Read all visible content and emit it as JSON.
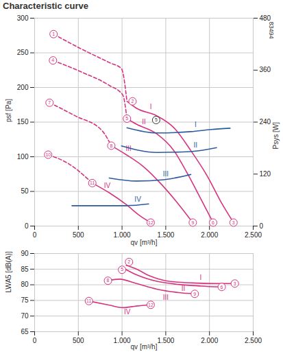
{
  "chart_data": [
    {
      "type": "line",
      "title": "Characteristic curve",
      "x_label": "qv [m³/h]",
      "y_label": "psf [Pa]",
      "y2_label": "Psys [W]",
      "code_label": "83494",
      "xlim": [
        0,
        2500
      ],
      "xticks": [
        0,
        500,
        {
          "value": 1000,
          "label": "1.000"
        },
        {
          "value": 1500,
          "label": "1.500"
        },
        {
          "value": 2000,
          "label": "2.000"
        },
        {
          "value": 2500,
          "label": "2.500"
        }
      ],
      "ylim": [
        0,
        300
      ],
      "yticks": [
        0,
        50,
        100,
        150,
        200,
        250,
        300
      ],
      "y2lim": [
        0,
        480
      ],
      "y2ticks": [
        0,
        120,
        240,
        360,
        480
      ],
      "grid": true,
      "series": [
        {
          "color": "#d6337f",
          "line_style": "dashed",
          "x": [
            217,
            543,
            854,
            994,
            1056
          ],
          "values": [
            277,
            255,
            236,
            227,
            180
          ]
        },
        {
          "color": "#d6337f",
          "line_style": "solid",
          "x": [
            1056,
            1165,
            1398,
            1592,
            1786,
            1980,
            2135,
            2275
          ],
          "values": [
            180,
            170,
            159,
            142,
            109,
            71,
            34,
            5
          ]
        },
        {
          "color": "#d6337f",
          "line_style": "dashed",
          "x": [
            210,
            543,
            854,
            1009,
            1056
          ],
          "values": [
            239,
            222,
            203,
            189,
            155
          ]
        },
        {
          "color": "#d6337f",
          "line_style": "solid",
          "x": [
            1056,
            1165,
            1398,
            1592,
            1747,
            1902,
            2042
          ],
          "values": [
            155,
            147,
            133,
            109,
            76,
            39,
            5
          ]
        },
        {
          "color": "#d6337f",
          "line_style": "dashed",
          "x": [
            171,
            466,
            776,
            877
          ],
          "values": [
            178,
            159,
            137,
            116
          ]
        },
        {
          "color": "#d6337f",
          "line_style": "solid",
          "x": [
            877,
            1048,
            1242,
            1437,
            1630,
            1809
          ],
          "values": [
            116,
            103,
            86,
            62,
            34,
            5
          ]
        },
        {
          "color": "#d6337f",
          "line_style": "dashed",
          "x": [
            155,
            388,
            660
          ],
          "values": [
            103,
            90,
            62
          ]
        },
        {
          "color": "#d6337f",
          "line_style": "solid",
          "x": [
            660,
            854,
            1048,
            1203,
            1328
          ],
          "values": [
            62,
            48,
            31,
            15,
            5
          ]
        },
        {
          "color": "#2b5a9e",
          "line_style": "solid",
          "axis": "y2",
          "x": [
            1056,
            1398,
            1786,
            2019,
            2236
          ],
          "values": [
            227,
            215,
            218,
            223,
            226
          ]
        },
        {
          "color": "#2b5a9e",
          "line_style": "solid",
          "axis": "y2",
          "x": [
            994,
            1398,
            1786,
            2081
          ],
          "values": [
            185,
            170,
            172,
            181
          ]
        },
        {
          "color": "#2b5a9e",
          "line_style": "solid",
          "axis": "y2",
          "x": [
            854,
            1165,
            1475,
            1786
          ],
          "values": [
            111,
            104,
            107,
            119
          ]
        },
        {
          "color": "#2b5a9e",
          "line_style": "solid",
          "axis": "y2",
          "x": [
            427,
            776,
            1048,
            1304
          ],
          "values": [
            47,
            47,
            47,
            51
          ]
        }
      ],
      "annotations": [
        {
          "text": "1",
          "x": 217,
          "y": 277,
          "marker": "circle",
          "color": "#d6337f"
        },
        {
          "text": "2",
          "x": 1120,
          "y": 180,
          "marker": "circle",
          "color": "#d6337f"
        },
        {
          "text": "3",
          "x": 2275,
          "y": 5,
          "marker": "circle",
          "color": "#d6337f"
        },
        {
          "text": "4",
          "x": 210,
          "y": 239,
          "marker": "circle",
          "color": "#d6337f"
        },
        {
          "text": "5",
          "x": 1056,
          "y": 155,
          "marker": "circle",
          "color": "#d6337f"
        },
        {
          "text": "6",
          "x": 2042,
          "y": 5,
          "marker": "circle",
          "color": "#d6337f"
        },
        {
          "text": "7",
          "x": 171,
          "y": 178,
          "marker": "circle",
          "color": "#d6337f"
        },
        {
          "text": "8",
          "x": 877,
          "y": 116,
          "marker": "circle",
          "color": "#d6337f"
        },
        {
          "text": "9",
          "x": 1809,
          "y": 5,
          "marker": "circle",
          "color": "#d6337f"
        },
        {
          "text": "10",
          "x": 155,
          "y": 103,
          "marker": "circle",
          "color": "#d6337f"
        },
        {
          "text": "11",
          "x": 660,
          "y": 62,
          "marker": "circle",
          "color": "#d6337f"
        },
        {
          "text": "12",
          "x": 1328,
          "y": 5,
          "marker": "circle",
          "color": "#d6337f"
        },
        {
          "text": "5",
          "x": 1390,
          "y": 153,
          "marker": "circle",
          "color": "#333333"
        },
        {
          "text": "I",
          "x": 1330,
          "y": 172,
          "color": "#d6337f"
        },
        {
          "text": "II",
          "x": 1250,
          "y": 150,
          "color": "#d6337f"
        },
        {
          "text": "III",
          "x": 1075,
          "y": 112,
          "color": "#d6337f"
        },
        {
          "text": "IV",
          "x": 830,
          "y": 58,
          "color": "#d6337f"
        },
        {
          "text": "I",
          "x": 1840,
          "y": 234,
          "color": "#2b5a9e",
          "axis": "y2"
        },
        {
          "text": "II",
          "x": 1840,
          "y": 187,
          "color": "#2b5a9e",
          "axis": "y2"
        },
        {
          "text": "III",
          "x": 1500,
          "y": 120,
          "color": "#2b5a9e",
          "axis": "y2"
        },
        {
          "text": "IV",
          "x": 1180,
          "y": 62,
          "color": "#2b5a9e",
          "axis": "y2"
        }
      ]
    },
    {
      "type": "line",
      "x_label": "qv [m³/h]",
      "y_label": "LWA5 [dB(A)]",
      "xlim": [
        0,
        2500
      ],
      "xticks": [
        0,
        500,
        {
          "value": 1000,
          "label": "1.000"
        },
        {
          "value": 1500,
          "label": "1.500"
        },
        {
          "value": 2000,
          "label": "2.000"
        },
        {
          "value": 2500,
          "label": "2.500"
        }
      ],
      "ylim": [
        65,
        90
      ],
      "yticks": [
        65,
        70,
        75,
        80,
        85,
        90
      ],
      "grid": true,
      "series": [
        {
          "color": "#d6337f",
          "line_style": "solid",
          "x": [
            1048,
            1165,
            1320,
            1500,
            1800,
            2100,
            2270
          ],
          "values": [
            86.2,
            85,
            82.8,
            81.3,
            80.6,
            80.4,
            80.4
          ]
        },
        {
          "color": "#d6337f",
          "line_style": "solid",
          "x": [
            1017,
            1165,
            1398,
            1650,
            1900,
            2127
          ],
          "values": [
            85.3,
            83.2,
            81.1,
            80.1,
            79.6,
            79.3
          ]
        },
        {
          "color": "#d6337f",
          "line_style": "solid",
          "x": [
            839,
            970,
            1165,
            1398,
            1650,
            1832
          ],
          "values": [
            81.3,
            81.8,
            80.4,
            78.6,
            77.5,
            77.1
          ]
        },
        {
          "color": "#d6337f",
          "line_style": "solid",
          "x": [
            621,
            854,
            1009,
            1165,
            1328
          ],
          "values": [
            74.8,
            73.5,
            72.7,
            73.2,
            73.6
          ]
        }
      ],
      "annotations": [
        {
          "text": "2",
          "x": 1080,
          "y": 87.3,
          "marker": "circle",
          "color": "#d6337f"
        },
        {
          "text": "3",
          "x": 2290,
          "y": 80.4,
          "marker": "circle",
          "color": "#d6337f"
        },
        {
          "text": "5",
          "x": 1000,
          "y": 84.8,
          "marker": "circle",
          "color": "#d6337f"
        },
        {
          "text": "6",
          "x": 2140,
          "y": 79.3,
          "marker": "circle",
          "color": "#d6337f"
        },
        {
          "text": "8",
          "x": 839,
          "y": 81.3,
          "marker": "circle",
          "color": "#d6337f"
        },
        {
          "text": "9",
          "x": 1832,
          "y": 77.1,
          "marker": "circle",
          "color": "#d6337f"
        },
        {
          "text": "11",
          "x": 621,
          "y": 74.8,
          "marker": "circle",
          "color": "#d6337f"
        },
        {
          "text": "12",
          "x": 1328,
          "y": 73.6,
          "marker": "circle",
          "color": "#d6337f"
        },
        {
          "text": "I",
          "x": 1900,
          "y": 82.2,
          "color": "#d6337f"
        },
        {
          "text": "II",
          "x": 1700,
          "y": 78.7,
          "color": "#d6337f"
        },
        {
          "text": "III",
          "x": 1500,
          "y": 76,
          "color": "#d6337f"
        },
        {
          "text": "IV",
          "x": 1060,
          "y": 71.2,
          "color": "#d6337f"
        }
      ]
    }
  ]
}
